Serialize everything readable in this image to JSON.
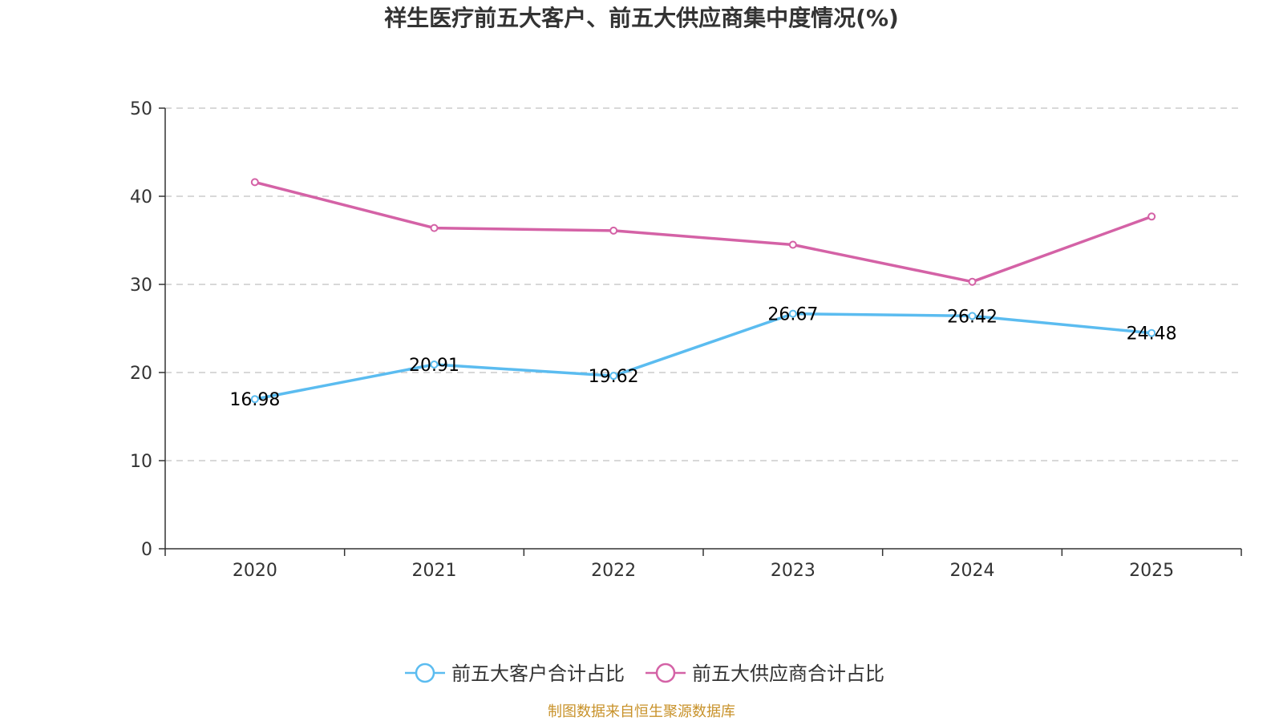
{
  "chart_data": {
    "type": "line",
    "title": "祥生医疗前五大客户、前五大供应商集中度情况(%)",
    "categories": [
      "2020",
      "2021",
      "2022",
      "2023",
      "2024",
      "2025"
    ],
    "ylim": [
      0,
      50
    ],
    "yticks": [
      0,
      10,
      20,
      30,
      40,
      50
    ],
    "grid": true,
    "legend_position": "bottom",
    "series": [
      {
        "name": "前五大客户合计占比",
        "color": "#5bbcf0",
        "values": [
          16.98,
          20.91,
          19.62,
          26.67,
          26.42,
          24.48
        ],
        "labels": [
          "16.98",
          "20.91",
          "19.62",
          "26.67",
          "26.42",
          "24.48"
        ],
        "show_labels": true
      },
      {
        "name": "前五大供应商合计占比",
        "color": "#d462a6",
        "values": [
          41.6,
          36.4,
          36.1,
          34.5,
          30.3,
          37.7
        ],
        "show_labels": false
      }
    ],
    "source": "制图数据来自恒生聚源数据库"
  }
}
